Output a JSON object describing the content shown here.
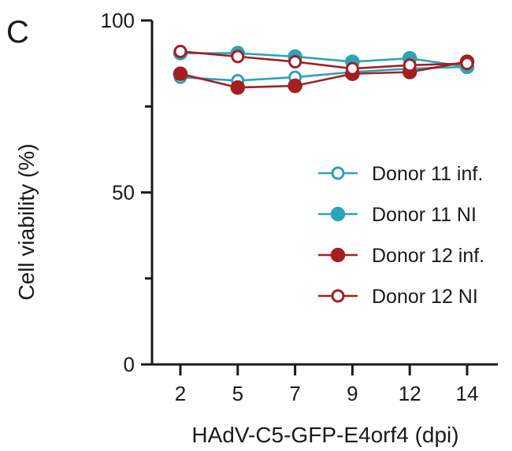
{
  "panel_label": "C",
  "colors": {
    "teal": "#2AA4B8",
    "red": "#A51E22",
    "axis": "#1a1a1a"
  },
  "chart_data": {
    "type": "line",
    "xlabel": "HAdV-C5-GFP-E4orf4 (dpi)",
    "ylabel": "Cell viability (%)",
    "ylim": [
      0,
      100
    ],
    "yticks": [
      0,
      50,
      100
    ],
    "yticks_minor": [
      25,
      75
    ],
    "categories": [
      "2",
      "5",
      "7",
      "9",
      "12",
      "14"
    ],
    "legend_position": "right-middle",
    "series": [
      {
        "name": "Donor 11 inf.",
        "color": "#2AA4B8",
        "marker": "open",
        "values": [
          83.5,
          82.5,
          83.5,
          85,
          86,
          86.5
        ]
      },
      {
        "name": "Donor 11 NI",
        "color": "#2AA4B8",
        "marker": "filled",
        "values": [
          90.5,
          90.5,
          89.5,
          88,
          89,
          86.5
        ]
      },
      {
        "name": "Donor 12 inf.",
        "color": "#A51E22",
        "marker": "filled",
        "values": [
          84.5,
          80.5,
          81,
          84.5,
          85,
          88
        ]
      },
      {
        "name": "Donor 12 NI",
        "color": "#A51E22",
        "marker": "open",
        "values": [
          91,
          89.5,
          88,
          86,
          87,
          87.5
        ]
      }
    ]
  }
}
